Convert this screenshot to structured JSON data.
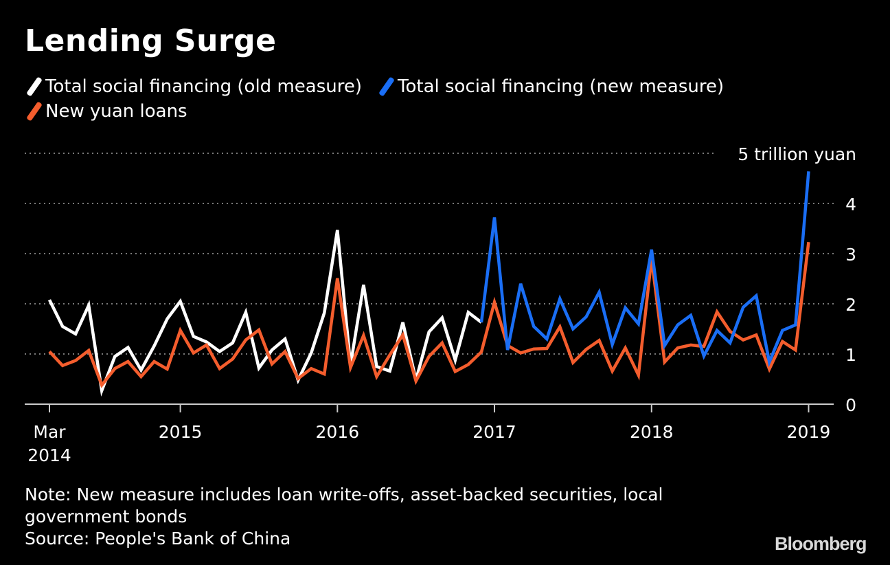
{
  "chart_data": {
    "type": "line",
    "title": "Lending Surge",
    "unit_label": "5 trillion yuan",
    "ylim": [
      0,
      5
    ],
    "yticks": [
      0,
      1,
      2,
      3,
      4,
      5
    ],
    "ytick_labels": [
      "0",
      "1",
      "2",
      "3",
      "4"
    ],
    "grid": "dotted horizontal",
    "legend_placement": "top-left",
    "x_start": "2014-03",
    "xlim": [
      "2014-03",
      "2019-03"
    ],
    "xticks": [
      {
        "date": "2014-03",
        "label": "Mar",
        "sublabel": "2014"
      },
      {
        "date": "2015-01",
        "label": "2015"
      },
      {
        "date": "2016-01",
        "label": "2016"
      },
      {
        "date": "2017-01",
        "label": "2017"
      },
      {
        "date": "2018-01",
        "label": "2018"
      },
      {
        "date": "2019-01",
        "label": "2019"
      }
    ],
    "series": [
      {
        "name": "Total social financing (old measure)",
        "color": "#ffffff",
        "start": "2014-03",
        "values": [
          2.08,
          1.55,
          1.4,
          1.97,
          0.27,
          0.95,
          1.13,
          0.68,
          1.16,
          1.7,
          2.05,
          1.35,
          1.24,
          1.05,
          1.22,
          1.83,
          0.72,
          1.08,
          1.3,
          0.48,
          1.02,
          1.82,
          3.47,
          0.78,
          2.38,
          0.75,
          0.66,
          1.63,
          0.48,
          1.44,
          1.72,
          0.88,
          1.83,
          1.63
        ]
      },
      {
        "name": "Total social financing (new measure)",
        "color": "#1a6ef5",
        "start": "2016-12",
        "values": [
          1.63,
          3.72,
          1.08,
          2.4,
          1.55,
          1.3,
          2.1,
          1.5,
          1.74,
          2.23,
          1.19,
          1.92,
          1.6,
          3.08,
          1.17,
          1.58,
          1.77,
          0.96,
          1.47,
          1.22,
          1.93,
          2.16,
          0.84,
          1.47,
          1.58,
          4.64
        ]
      },
      {
        "name": "New yuan loans",
        "color": "#f45d2d",
        "start": "2014-03",
        "values": [
          1.05,
          0.77,
          0.87,
          1.07,
          0.38,
          0.71,
          0.85,
          0.55,
          0.85,
          0.7,
          1.47,
          1.02,
          1.18,
          0.71,
          0.9,
          1.28,
          1.48,
          0.8,
          1.05,
          0.51,
          0.71,
          0.6,
          2.51,
          0.73,
          1.37,
          0.55,
          0.98,
          1.38,
          0.46,
          0.95,
          1.22,
          0.65,
          0.79,
          1.04,
          2.03,
          1.17,
          1.02,
          1.1,
          1.11,
          1.54,
          0.83,
          1.09,
          1.27,
          0.66,
          1.12,
          0.58,
          2.9,
          0.84,
          1.12,
          1.18,
          1.15,
          1.84,
          1.45,
          1.28,
          1.38,
          0.7,
          1.25,
          1.08,
          3.23
        ]
      }
    ]
  },
  "note": "Note: New measure includes loan write-offs, asset-backed securities, local government bonds",
  "source": "Source: People's Bank of China",
  "brand": "Bloomberg"
}
